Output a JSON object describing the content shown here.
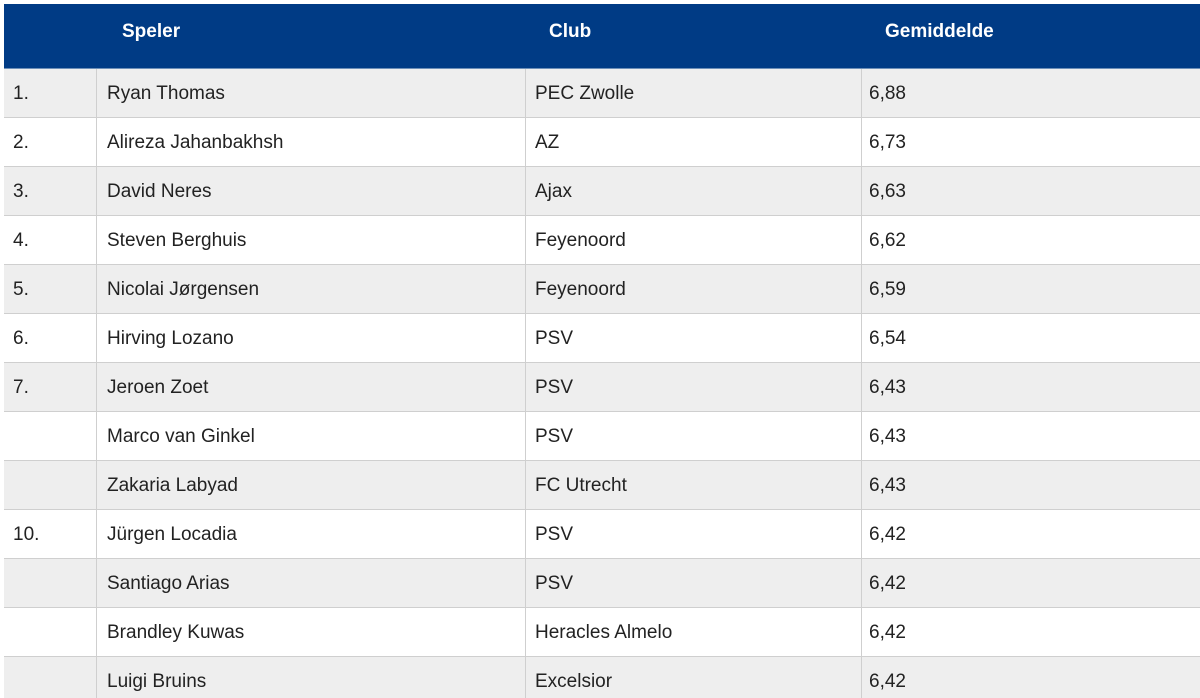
{
  "header": {
    "col_player": "Speler",
    "col_club": "Club",
    "col_average": "Gemiddelde"
  },
  "rows": [
    {
      "rank": "1.",
      "player": "Ryan Thomas",
      "club": "PEC Zwolle",
      "average": "6,88"
    },
    {
      "rank": "2.",
      "player": "Alireza Jahanbakhsh",
      "club": "AZ",
      "average": "6,73"
    },
    {
      "rank": "3.",
      "player": "David Neres",
      "club": "Ajax",
      "average": "6,63"
    },
    {
      "rank": "4.",
      "player": "Steven Berghuis",
      "club": "Feyenoord",
      "average": "6,62"
    },
    {
      "rank": "5.",
      "player": "Nicolai Jørgensen",
      "club": "Feyenoord",
      "average": "6,59"
    },
    {
      "rank": "6.",
      "player": "Hirving Lozano",
      "club": "PSV",
      "average": "6,54"
    },
    {
      "rank": "7.",
      "player": "Jeroen Zoet",
      "club": "PSV",
      "average": "6,43"
    },
    {
      "rank": "",
      "player": "Marco van Ginkel",
      "club": "PSV",
      "average": "6,43"
    },
    {
      "rank": "",
      "player": "Zakaria Labyad",
      "club": "FC Utrecht",
      "average": "6,43"
    },
    {
      "rank": "10.",
      "player": "Jürgen Locadia",
      "club": "PSV",
      "average": "6,42"
    },
    {
      "rank": "",
      "player": "Santiago Arias",
      "club": "PSV",
      "average": "6,42"
    },
    {
      "rank": "",
      "player": "Brandley Kuwas",
      "club": "Heracles Almelo",
      "average": "6,42"
    },
    {
      "rank": "",
      "player": "Luigi Bruins",
      "club": "Excelsior",
      "average": "6,42"
    }
  ],
  "colors": {
    "header_bg": "#003b85",
    "row_alt_bg": "#eeeeee",
    "grid": "#cfcfcf"
  }
}
